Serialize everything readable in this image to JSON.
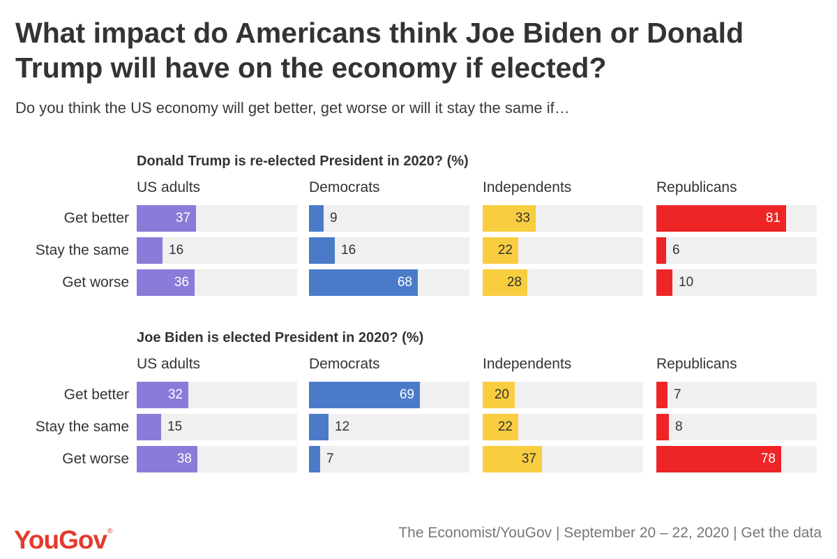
{
  "header": {
    "title": "What impact do Americans think Joe Biden or Donald Trump will have on the economy if elected?",
    "subtitle": "Do you think the US economy will get better, get worse or will it stay the same if…"
  },
  "footer": {
    "logo": "YouGov",
    "source": "The Economist/YouGov | September 20 – 22, 2020 | Get the data"
  },
  "colors": {
    "US adults": "#8b7bd8",
    "Democrats": "#4a7bc8",
    "Independents": "#f8cd40",
    "Republicans": "#ee2526",
    "track": "#f0f0f0",
    "logo": "#e23b2e"
  },
  "chart_data": {
    "type": "bar",
    "orientation": "horizontal",
    "xlim": [
      0,
      100
    ],
    "categories": [
      "Get better",
      "Stay the same",
      "Get worse"
    ],
    "groups": [
      "US adults",
      "Democrats",
      "Independents",
      "Republicans"
    ],
    "panels": [
      {
        "title": "Donald Trump is re-elected President in 2020? (%)",
        "series": [
          {
            "name": "US adults",
            "values": [
              37,
              16,
              36
            ]
          },
          {
            "name": "Democrats",
            "values": [
              9,
              16,
              68
            ]
          },
          {
            "name": "Independents",
            "values": [
              33,
              22,
              28
            ]
          },
          {
            "name": "Republicans",
            "values": [
              81,
              6,
              10
            ]
          }
        ]
      },
      {
        "title": "Joe Biden is elected President in 2020? (%)",
        "series": [
          {
            "name": "US adults",
            "values": [
              32,
              15,
              38
            ]
          },
          {
            "name": "Democrats",
            "values": [
              69,
              12,
              7
            ]
          },
          {
            "name": "Independents",
            "values": [
              20,
              22,
              37
            ]
          },
          {
            "name": "Republicans",
            "values": [
              7,
              8,
              78
            ]
          }
        ]
      }
    ]
  }
}
